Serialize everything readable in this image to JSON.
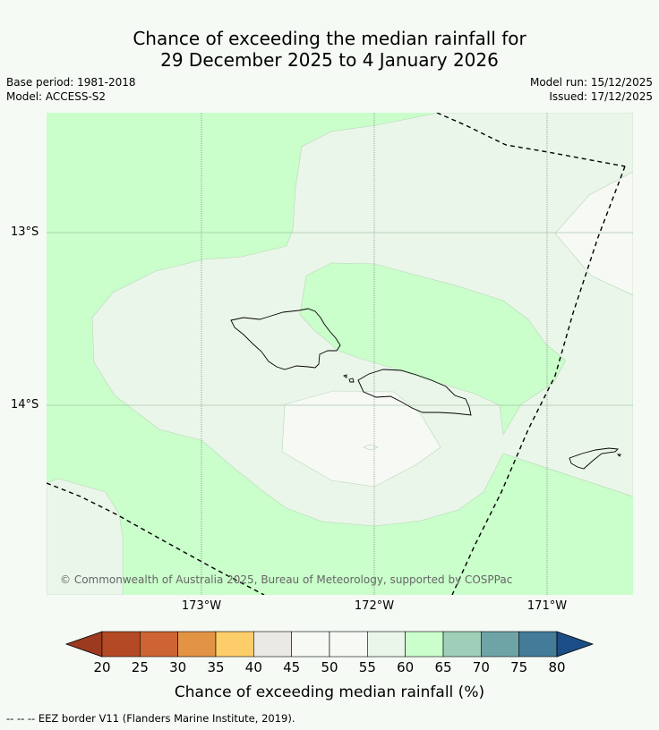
{
  "title": {
    "line1": "Chance of exceeding the median rainfall for",
    "line2": "29 December 2025 to 4 January 2026"
  },
  "meta": {
    "base_period": "Base period: 1981-2018",
    "model": "Model: ACCESS-S2",
    "model_run": "Model run: 15/12/2025",
    "issued": "Issued: 17/12/2025"
  },
  "map": {
    "lat_labels": [
      "13°S",
      "14°S"
    ],
    "lon_labels": [
      "173°W",
      "172°W",
      "171°W"
    ],
    "copyright": "© Commonwealth of Australia 2025, Bureau of Meteorology, supported by COSPPac"
  },
  "colorbar": {
    "ticks": [
      "20",
      "25",
      "30",
      "35",
      "40",
      "45",
      "50",
      "55",
      "60",
      "65",
      "70",
      "75",
      "80"
    ],
    "colors": [
      "#b34a25",
      "#cd6431",
      "#e29344",
      "#fdcd6a",
      "#ebe9e4",
      "#f6f9f4",
      "#f6f9f4",
      "#ebf6ea",
      "#cafecb",
      "#9ecfb8",
      "#6fa4a7",
      "#437b99"
    ],
    "under_color": "#9b3a1f",
    "over_color": "#1b4e86",
    "label": "Chance of exceeding median rainfall (%)"
  },
  "footnote": "--  --  -- EEZ border V11 (Flanders Marine Institute, 2019)."
}
